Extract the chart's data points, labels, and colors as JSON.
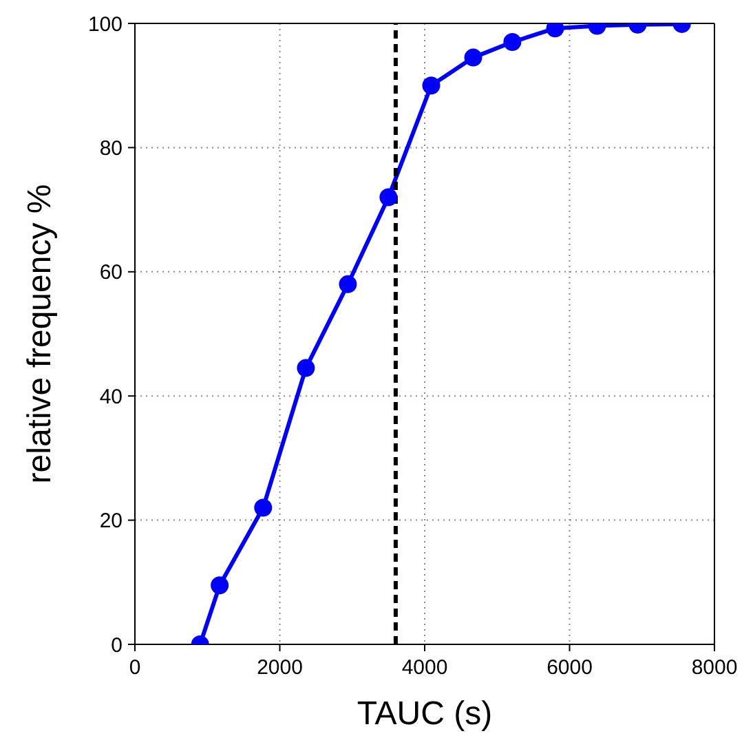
{
  "chart_data": {
    "type": "line",
    "xlabel": "TAUC (s)",
    "ylabel": "relative frequency %",
    "x": [
      900,
      1170,
      1770,
      2360,
      2940,
      3500,
      4090,
      4670,
      5210,
      5800,
      6380,
      6940,
      7550
    ],
    "series": [
      {
        "color": "#0000ff",
        "values": [
          0,
          9.5,
          22,
          44.5,
          58,
          72,
          90,
          94.5,
          97,
          99.2,
          99.6,
          99.8,
          99.9
        ]
      }
    ],
    "xlim": [
      0,
      8000
    ],
    "xticks": [
      0,
      2000,
      4000,
      6000,
      8000
    ],
    "ylim": [
      0,
      100
    ],
    "yticks": [
      0,
      20,
      40,
      60,
      80,
      100
    ],
    "grid": true,
    "marker": "circle",
    "line_style": "solid",
    "ref_lines": [
      {
        "axis": "x",
        "value": 3600,
        "color": "#000000",
        "line_style": "dashed"
      }
    ]
  }
}
